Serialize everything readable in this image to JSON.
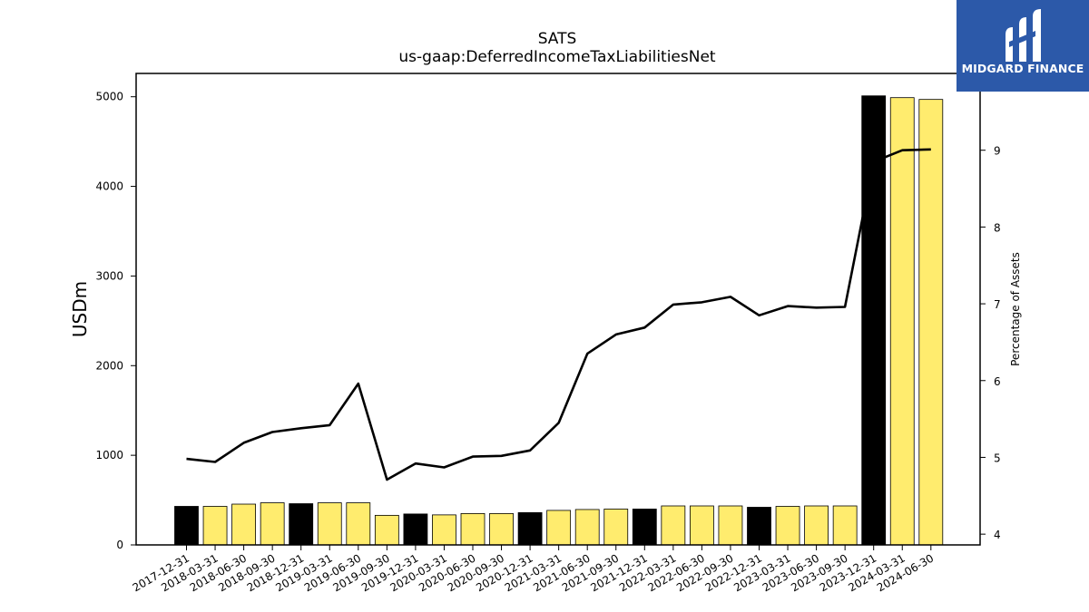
{
  "brand": {
    "name": "MIDGARD FINANCE",
    "color": "#2c59a9"
  },
  "chart_data": {
    "type": "bar",
    "title": "SATS",
    "subtitle": "us-gaap:DeferredIncomeTaxLiabilitiesNet",
    "ylabel": "USDm",
    "y2label": "Percentage of Assets",
    "ylim": [
      0,
      5260
    ],
    "y2lim": [
      3.86,
      10.0
    ],
    "y_ticks": [
      0,
      1000,
      2000,
      3000,
      4000,
      5000
    ],
    "y2_ticks": [
      4,
      5,
      6,
      7,
      8,
      9
    ],
    "grid": false,
    "categories": [
      "2017-12-31",
      "2018-03-31",
      "2018-06-30",
      "2018-09-30",
      "2018-12-31",
      "2019-03-31",
      "2019-06-30",
      "2019-09-30",
      "2019-12-31",
      "2020-03-31",
      "2020-06-30",
      "2020-09-30",
      "2020-12-31",
      "2021-03-31",
      "2021-06-30",
      "2021-09-30",
      "2021-12-31",
      "2022-03-31",
      "2022-06-30",
      "2022-09-30",
      "2022-12-31",
      "2023-03-31",
      "2023-06-30",
      "2023-09-30",
      "2023-12-31",
      "2024-03-31",
      "2024-06-30"
    ],
    "series": [
      {
        "type": "bar",
        "axis": "left",
        "values": [
          430,
          430,
          455,
          470,
          460,
          470,
          470,
          330,
          345,
          335,
          350,
          350,
          360,
          385,
          395,
          400,
          400,
          435,
          435,
          435,
          420,
          430,
          435,
          435,
          5010,
          4990,
          4970
        ],
        "colors": [
          "#000000",
          "#ffec6e",
          "#ffec6e",
          "#ffec6e",
          "#000000",
          "#ffec6e",
          "#ffec6e",
          "#ffec6e",
          "#000000",
          "#ffec6e",
          "#ffec6e",
          "#ffec6e",
          "#000000",
          "#ffec6e",
          "#ffec6e",
          "#ffec6e",
          "#000000",
          "#ffec6e",
          "#ffec6e",
          "#ffec6e",
          "#000000",
          "#ffec6e",
          "#ffec6e",
          "#ffec6e",
          "#000000",
          "#ffec6e",
          "#ffec6e"
        ]
      },
      {
        "type": "line",
        "axis": "right",
        "color": "#000000",
        "values": [
          4.98,
          4.94,
          5.19,
          5.33,
          5.38,
          5.42,
          5.96,
          4.71,
          4.92,
          4.87,
          5.01,
          5.02,
          5.09,
          5.45,
          6.35,
          6.6,
          6.69,
          6.99,
          7.02,
          7.09,
          6.85,
          6.97,
          6.95,
          6.96,
          8.85,
          9.0,
          9.01
        ]
      }
    ]
  }
}
